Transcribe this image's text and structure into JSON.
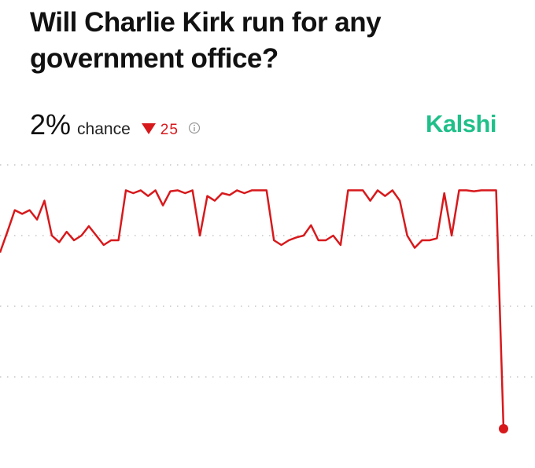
{
  "header": {
    "title": "Will Charlie Kirk run for any government office?",
    "chance": "2%",
    "chance_label": "chance",
    "change": "25",
    "brand": "Kalshi"
  },
  "chart_data": {
    "type": "line",
    "color": "#d7191c",
    "values": [
      20.7,
      22.9,
      25.2,
      24.8,
      25.2,
      24.2,
      26.2,
      22.5,
      21.8,
      22.9,
      22,
      22.5,
      23.5,
      22.5,
      21.5,
      22,
      22,
      27.3,
      27,
      27.3,
      26.7,
      27.3,
      25.7,
      27.2,
      27.3,
      27,
      27.3,
      22.5,
      26.7,
      26.2,
      27,
      26.8,
      27.3,
      27,
      27.3,
      27.3,
      27.3,
      22,
      21.5,
      22,
      22.3,
      22.5,
      23.6,
      22,
      22,
      22.5,
      21.5,
      27.3,
      27.3,
      27.3,
      26.2,
      27.3,
      26.7,
      27.3,
      26.2,
      22.5,
      21.2,
      22,
      22,
      22.2,
      27,
      22.5,
      27.3,
      27.3,
      27.2,
      27.3,
      27.3,
      27.3,
      2
    ],
    "ylim": [
      0,
      30
    ],
    "yticks": [
      30,
      22.5,
      15,
      7.5
    ],
    "grid": true
  }
}
